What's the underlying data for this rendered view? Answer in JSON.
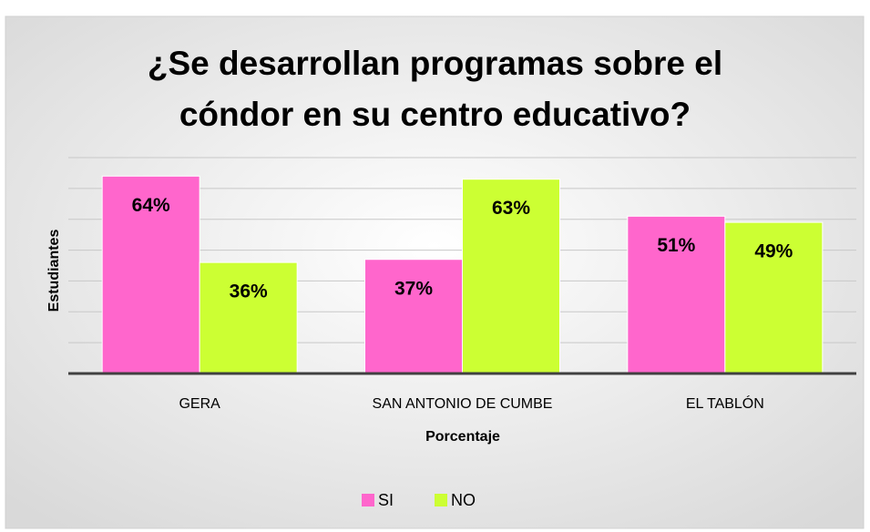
{
  "chart_data": {
    "type": "bar",
    "title": "¿Se desarrollan programas sobre el cóndor en su centro educativo?",
    "x_label": "Porcentaje",
    "y_label": "Estudiantes",
    "categories": [
      "GERA",
      "SAN ANTONIO DE CUMBE",
      "EL TABLÓN"
    ],
    "series": [
      {
        "name": "SI",
        "color": "#ff66cc",
        "values": [
          64,
          37,
          51
        ],
        "value_labels": [
          "64%",
          "37%",
          "51%"
        ]
      },
      {
        "name": "NO",
        "color": "#ccff33",
        "values": [
          36,
          63,
          49
        ],
        "value_labels": [
          "36%",
          "63%",
          "49%"
        ]
      }
    ],
    "ylim": [
      0,
      70
    ],
    "yticks": [
      0,
      10,
      20,
      30,
      40,
      50,
      60,
      70
    ],
    "grid": true,
    "legend": "bottom"
  }
}
